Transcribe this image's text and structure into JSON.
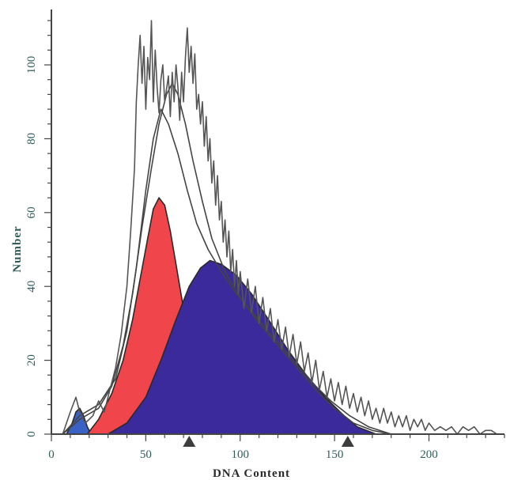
{
  "chart_data": {
    "type": "area",
    "title": "",
    "xlabel": "DNA Content",
    "ylabel": "Number",
    "xlim": [
      0,
      240
    ],
    "ylim": [
      0,
      115
    ],
    "x_ticks": [
      0,
      50,
      100,
      150,
      200
    ],
    "y_ticks": [
      0,
      20,
      40,
      60,
      80,
      100
    ],
    "grid": false,
    "legend": "none",
    "markers_x": [
      73,
      157
    ],
    "series": [
      {
        "kind": "filled",
        "color": "#3a62c4",
        "points": [
          [
            8,
            0
          ],
          [
            11,
            3
          ],
          [
            13,
            6
          ],
          [
            15,
            7
          ],
          [
            17,
            5
          ],
          [
            19,
            2
          ],
          [
            21,
            0
          ]
        ]
      },
      {
        "kind": "filled",
        "color": "#f0454a",
        "points": [
          [
            19,
            0
          ],
          [
            25,
            4
          ],
          [
            32,
            11
          ],
          [
            38,
            20
          ],
          [
            43,
            31
          ],
          [
            47,
            42
          ],
          [
            51,
            53
          ],
          [
            54,
            61
          ],
          [
            57,
            64
          ],
          [
            60,
            62
          ],
          [
            63,
            55
          ],
          [
            66,
            46
          ],
          [
            69,
            37
          ],
          [
            72,
            28
          ],
          [
            75,
            21
          ],
          [
            78,
            14
          ],
          [
            81,
            8
          ],
          [
            84,
            0
          ]
        ]
      },
      {
        "kind": "filled",
        "color": "#3a2a9c",
        "points": [
          [
            30,
            0
          ],
          [
            40,
            3
          ],
          [
            50,
            10
          ],
          [
            58,
            20
          ],
          [
            66,
            31
          ],
          [
            73,
            40
          ],
          [
            79,
            45
          ],
          [
            84,
            47
          ],
          [
            90,
            46
          ],
          [
            98,
            43
          ],
          [
            106,
            38
          ],
          [
            115,
            31
          ],
          [
            125,
            23
          ],
          [
            135,
            16
          ],
          [
            145,
            10
          ],
          [
            155,
            5
          ],
          [
            162,
            2
          ],
          [
            172,
            0
          ]
        ]
      },
      {
        "kind": "outline",
        "color": "#444444",
        "points": [
          [
            6,
            0
          ],
          [
            15,
            4
          ],
          [
            25,
            7
          ],
          [
            32,
            13
          ],
          [
            38,
            24
          ],
          [
            43,
            38
          ],
          [
            48,
            56
          ],
          [
            53,
            72
          ],
          [
            57,
            84
          ],
          [
            61,
            92
          ],
          [
            64,
            95
          ],
          [
            67,
            92
          ],
          [
            71,
            84
          ],
          [
            75,
            74
          ],
          [
            80,
            63
          ],
          [
            85,
            53
          ],
          [
            92,
            44
          ],
          [
            100,
            37
          ],
          [
            110,
            30
          ],
          [
            120,
            24
          ],
          [
            130,
            18
          ],
          [
            140,
            12
          ],
          [
            150,
            7
          ],
          [
            160,
            3
          ],
          [
            170,
            1
          ],
          [
            180,
            0
          ]
        ]
      },
      {
        "kind": "outline",
        "color": "#444444",
        "points": [
          [
            6,
            0
          ],
          [
            15,
            5
          ],
          [
            25,
            8
          ],
          [
            34,
            15
          ],
          [
            40,
            28
          ],
          [
            45,
            45
          ],
          [
            50,
            66
          ],
          [
            54,
            80
          ],
          [
            58,
            88
          ],
          [
            62,
            84
          ],
          [
            67,
            76
          ],
          [
            72,
            66
          ],
          [
            77,
            57
          ],
          [
            83,
            50
          ],
          [
            90,
            44
          ],
          [
            98,
            38
          ],
          [
            108,
            32
          ],
          [
            118,
            26
          ],
          [
            128,
            20
          ],
          [
            138,
            14
          ],
          [
            148,
            9
          ],
          [
            158,
            5
          ],
          [
            168,
            2
          ],
          [
            180,
            0
          ]
        ]
      },
      {
        "kind": "outline",
        "color": "#555555",
        "points": [
          [
            6,
            0
          ],
          [
            10,
            6
          ],
          [
            13,
            10
          ],
          [
            15,
            6
          ],
          [
            18,
            3
          ],
          [
            22,
            5
          ],
          [
            25,
            9
          ],
          [
            28,
            6
          ],
          [
            31,
            12
          ],
          [
            34,
            18
          ],
          [
            37,
            27
          ],
          [
            40,
            40
          ],
          [
            42,
            55
          ],
          [
            44,
            72
          ],
          [
            45,
            90
          ],
          [
            46,
            100
          ],
          [
            47,
            108
          ],
          [
            48,
            95
          ],
          [
            49,
            105
          ],
          [
            50,
            88
          ],
          [
            51,
            102
          ],
          [
            52,
            96
          ],
          [
            53,
            112
          ],
          [
            54,
            90
          ],
          [
            55,
            104
          ],
          [
            56,
            94
          ],
          [
            57,
            87
          ],
          [
            58,
            96
          ],
          [
            59,
            100
          ],
          [
            60,
            90
          ],
          [
            62,
            97
          ],
          [
            63,
            86
          ],
          [
            64,
            98
          ],
          [
            65,
            90
          ],
          [
            66,
            100
          ],
          [
            67,
            94
          ],
          [
            68,
            85
          ],
          [
            69,
            98
          ],
          [
            70,
            90
          ],
          [
            71,
            102
          ],
          [
            72,
            110
          ],
          [
            73,
            98
          ],
          [
            74,
            105
          ],
          [
            75,
            95
          ],
          [
            76,
            103
          ],
          [
            77,
            88
          ],
          [
            78,
            92
          ],
          [
            79,
            84
          ],
          [
            80,
            90
          ],
          [
            81,
            78
          ],
          [
            82,
            86
          ],
          [
            83,
            74
          ],
          [
            84,
            80
          ],
          [
            85,
            68
          ],
          [
            86,
            74
          ],
          [
            87,
            62
          ],
          [
            88,
            70
          ],
          [
            89,
            58
          ],
          [
            90,
            63
          ],
          [
            91,
            52
          ],
          [
            92,
            58
          ],
          [
            93,
            48
          ],
          [
            94,
            55
          ],
          [
            95,
            44
          ],
          [
            96,
            50
          ],
          [
            97,
            40
          ],
          [
            98,
            47
          ],
          [
            99,
            38
          ],
          [
            100,
            44
          ],
          [
            102,
            34
          ],
          [
            104,
            42
          ],
          [
            106,
            33
          ],
          [
            108,
            40
          ],
          [
            110,
            30
          ],
          [
            112,
            37
          ],
          [
            114,
            28
          ],
          [
            116,
            34
          ],
          [
            118,
            25
          ],
          [
            120,
            31
          ],
          [
            122,
            23
          ],
          [
            124,
            29
          ],
          [
            126,
            21
          ],
          [
            128,
            27
          ],
          [
            130,
            19
          ],
          [
            132,
            25
          ],
          [
            134,
            17
          ],
          [
            136,
            22
          ],
          [
            138,
            14
          ],
          [
            140,
            20
          ],
          [
            142,
            12
          ],
          [
            144,
            17
          ],
          [
            146,
            10
          ],
          [
            148,
            15
          ],
          [
            150,
            9
          ],
          [
            152,
            14
          ],
          [
            154,
            8
          ],
          [
            156,
            13
          ],
          [
            158,
            7
          ],
          [
            160,
            11
          ],
          [
            162,
            6
          ],
          [
            164,
            10
          ],
          [
            166,
            5
          ],
          [
            168,
            9
          ],
          [
            170,
            4
          ],
          [
            172,
            7
          ],
          [
            174,
            3
          ],
          [
            176,
            7
          ],
          [
            178,
            3
          ],
          [
            180,
            6
          ],
          [
            182,
            2
          ],
          [
            184,
            5
          ],
          [
            186,
            2
          ],
          [
            188,
            5
          ],
          [
            190,
            1
          ],
          [
            192,
            4
          ],
          [
            194,
            2
          ],
          [
            196,
            4
          ],
          [
            198,
            1
          ],
          [
            200,
            3
          ],
          [
            203,
            1
          ],
          [
            206,
            2
          ],
          [
            209,
            1
          ],
          [
            212,
            2
          ],
          [
            215,
            0
          ],
          [
            218,
            2
          ],
          [
            221,
            1
          ],
          [
            224,
            2
          ],
          [
            227,
            0
          ],
          [
            230,
            1
          ],
          [
            233,
            1
          ],
          [
            236,
            0
          ]
        ]
      }
    ]
  }
}
